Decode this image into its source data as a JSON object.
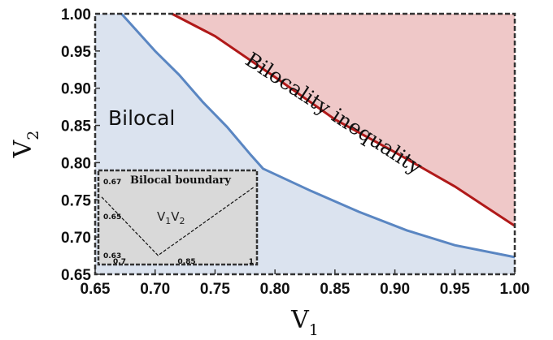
{
  "chart_data": {
    "type": "area",
    "xlabel": "V",
    "xlabel_sub": "1",
    "ylabel": "V",
    "ylabel_sub": "2",
    "xlim": [
      0.65,
      1.0
    ],
    "ylim": [
      0.65,
      1.0
    ],
    "x_ticks": [
      "0.65",
      "0.70",
      "0.75",
      "0.80",
      "0.85",
      "0.90",
      "0.95",
      "1.00"
    ],
    "y_ticks": [
      "0.65",
      "0.70",
      "0.75",
      "0.80",
      "0.85",
      "0.90",
      "0.95",
      "1.00"
    ],
    "series": [
      {
        "name": "Bilocal",
        "color": "#5a86c2",
        "fill": "#dbe3ef",
        "x": [
          0.672,
          0.7,
          0.72,
          0.74,
          0.76,
          0.78,
          0.79,
          0.83,
          0.87,
          0.91,
          0.95,
          1.0
        ],
        "y": [
          1.0,
          0.95,
          0.918,
          0.881,
          0.848,
          0.81,
          0.792,
          0.762,
          0.734,
          0.709,
          0.689,
          0.673
        ]
      },
      {
        "name": "Bilocality inequality",
        "color": "#b01919",
        "fill": "#efc8c8",
        "x": [
          0.714,
          0.75,
          0.8,
          0.85,
          0.9,
          0.95,
          1.0
        ],
        "y": [
          1.0,
          0.97,
          0.915,
          0.858,
          0.814,
          0.768,
          0.715
        ]
      }
    ],
    "inset": {
      "title": "Bilocal boundary",
      "expression": "V",
      "expr_sub1": "1",
      "expr_mid": "V",
      "expr_sub2": "2",
      "xlim": [
        0.66,
        1.0
      ],
      "ylim": [
        0.627,
        0.672
      ],
      "x_ticks": [
        "0.7",
        "0.85",
        "1"
      ],
      "y_ticks": [
        "0.67",
        "0.65",
        "0.63"
      ],
      "x": [
        0.66,
        0.786,
        1.0
      ],
      "y": [
        0.66,
        0.63,
        0.665
      ]
    }
  }
}
